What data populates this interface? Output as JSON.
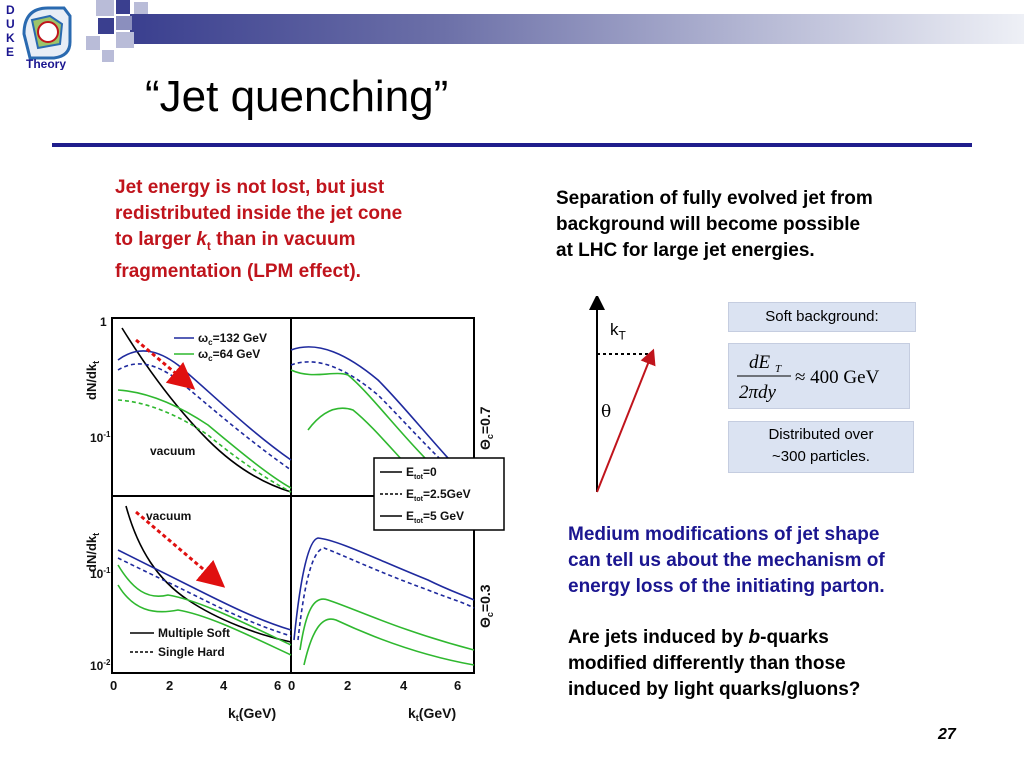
{
  "logo": {
    "letters": [
      "D",
      "U",
      "K",
      "E"
    ],
    "text": "Theory"
  },
  "title": "“Jet quenching”",
  "left_paragraph": {
    "line1": "Jet energy is not lost, but just",
    "line2": "redistributed inside the jet cone",
    "line3_pre": "to larger ",
    "line3_k": "k",
    "line3_sub": "t",
    "line3_post": " than in vacuum",
    "line4": "fragmentation (LPM effect)."
  },
  "right_paragraph": {
    "line1": "Separation of fully evolved jet from",
    "line2": "background will become possible",
    "line3": "at LHC for large jet energies."
  },
  "diagram": {
    "kt_label": "k",
    "kt_sub": "T",
    "theta_label": "θ"
  },
  "boxes": {
    "soft_background": "Soft background:",
    "formula_num": "dE",
    "formula_num_sub": "T",
    "formula_den": "2πdy",
    "formula_rhs": "≈ 400 GeV",
    "distributed_line1": "Distributed over",
    "distributed_line2": "~300 particles."
  },
  "medium_paragraph": {
    "line1": "Medium modifications of jet shape",
    "line2": "can tell us about the mechanism of",
    "line3": "energy loss of the initiating parton."
  },
  "quarks_paragraph": {
    "line1_pre": "Are jets induced by ",
    "line1_b": "b",
    "line1_post": "-quarks",
    "line2": "modified differently than those",
    "line3": "induced by light quarks/gluons?"
  },
  "figure": {
    "ylabel_top": "dN/dk",
    "ylabel_top_sub": "t",
    "ylabel_bottom": "dN/dk",
    "ylabel_bottom_sub": "t",
    "theta_top": "Θ",
    "theta_top_sub": "c",
    "theta_top_val": "=0.7",
    "theta_bottom": "Θ",
    "theta_bottom_sub": "c",
    "theta_bottom_val": "=0.3",
    "legend_top_1": "ω",
    "legend_top_1_sub": "c",
    "legend_top_1_val": "=132 GeV",
    "legend_top_2": "ω",
    "legend_top_2_sub": "c",
    "legend_top_2_val": "=64 GeV",
    "vacuum_top": "vacuum",
    "vacuum_bottom": "vacuum",
    "eloss_legend": [
      {
        "prefix": "E",
        "sub": "tot",
        "val": "=0"
      },
      {
        "prefix": "E",
        "sub": "tot",
        "val": "=2.5GeV"
      },
      {
        "prefix": "E",
        "sub": "tot",
        "val": "=5 GeV"
      }
    ],
    "bottom_legend_1": "Multiple Soft",
    "bottom_legend_2": "Single Hard",
    "ytick_1": "1",
    "ytick_01": "10",
    "ytick_01_exp": "-1",
    "ytick_02": "10",
    "ytick_02_exp": "-2",
    "xticks_left": [
      "0",
      "2",
      "4",
      "6"
    ],
    "xticks_right": [
      "0",
      "2",
      "4",
      "6"
    ],
    "xlabel_left": "k",
    "xlabel_left_sub": "t",
    "xlabel_left_unit": "(GeV)",
    "xlabel_right": "k",
    "xlabel_right_sub": "t",
    "xlabel_right_unit": "(GeV)"
  },
  "page_number": "27",
  "colors": {
    "red": "#c0141c",
    "navy": "#1b1690",
    "rule": "#1f1d8c",
    "box": "#dbe3f2"
  }
}
